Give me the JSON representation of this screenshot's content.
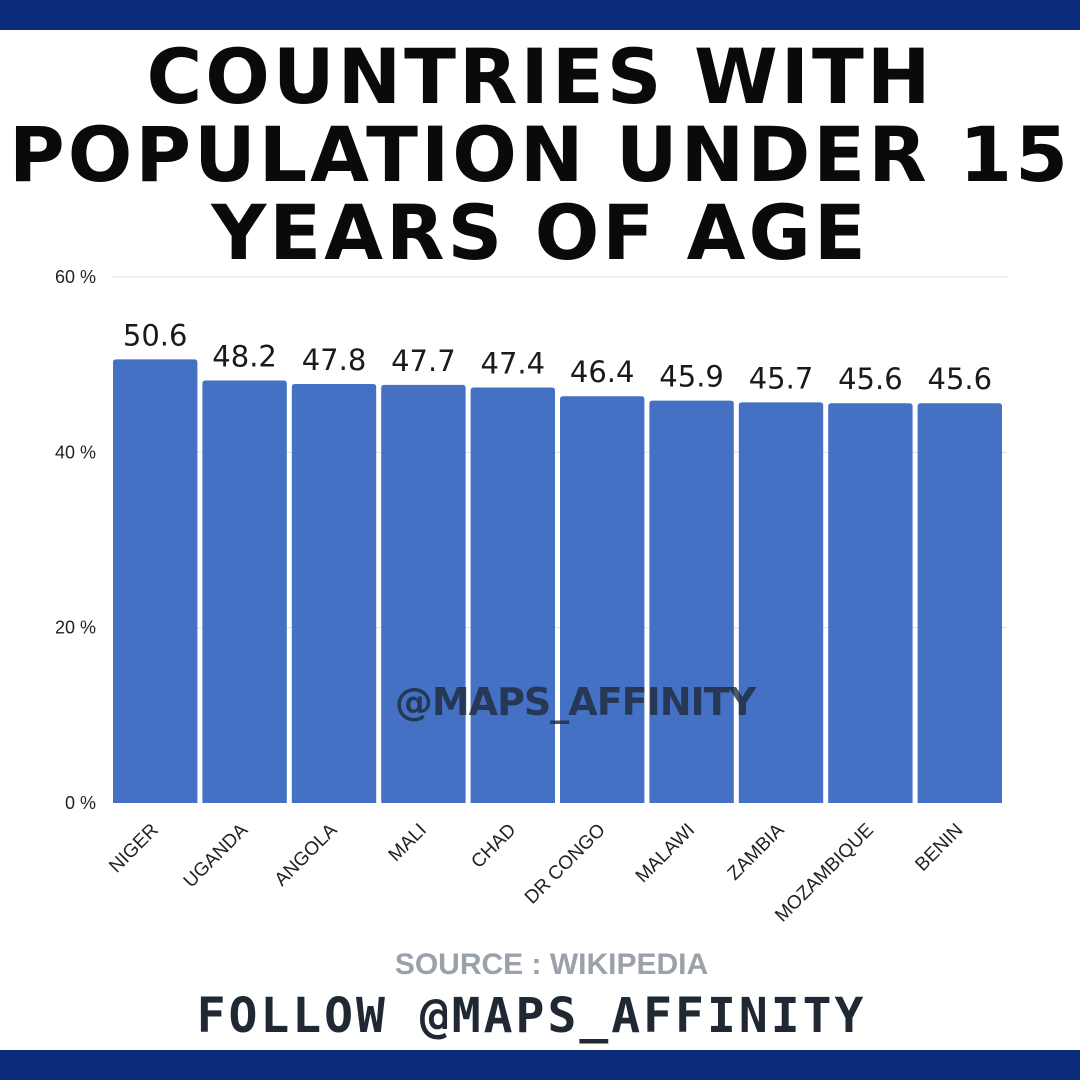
{
  "colors": {
    "band": "#0a2a7a",
    "bar": "#4471c4",
    "grid": "#e0e0e0",
    "axis_text": "#222222",
    "label_text": "#1a1a1a"
  },
  "title_lines": [
    "COUNTRIES WITH",
    "POPULATION UNDER 15",
    "YEARS OF AGE"
  ],
  "watermark": "@MAPS_AFFINITY",
  "source": "SOURCE : WIKIPEDIA",
  "follow": "FOLLOW @MAPS_AFFINITY",
  "chart_data": {
    "type": "bar",
    "title": "COUNTRIES WITH POPULATION UNDER 15 YEARS OF AGE",
    "categories": [
      "NIGER",
      "UGANDA",
      "ANGOLA",
      "MALI",
      "CHAD",
      "DR CONGO",
      "MALAWI",
      "ZAMBIA",
      "MOZAMBIQUE",
      "BENIN"
    ],
    "values": [
      50.6,
      48.2,
      47.8,
      47.7,
      47.4,
      46.4,
      45.9,
      45.7,
      45.6,
      45.6
    ],
    "value_labels": [
      "50.6",
      "48.2",
      "47.8",
      "47.7",
      "47.4",
      "46.4",
      "45.9",
      "45.7",
      "45.6",
      "45.6"
    ],
    "ylim": [
      0,
      60
    ],
    "y_ticks": [
      0,
      20,
      40,
      60
    ],
    "y_tick_labels": [
      "0 %",
      "20 %",
      "40 %",
      "60 %"
    ],
    "xlabel": "",
    "ylabel": "",
    "grid": true,
    "legend": "none"
  }
}
